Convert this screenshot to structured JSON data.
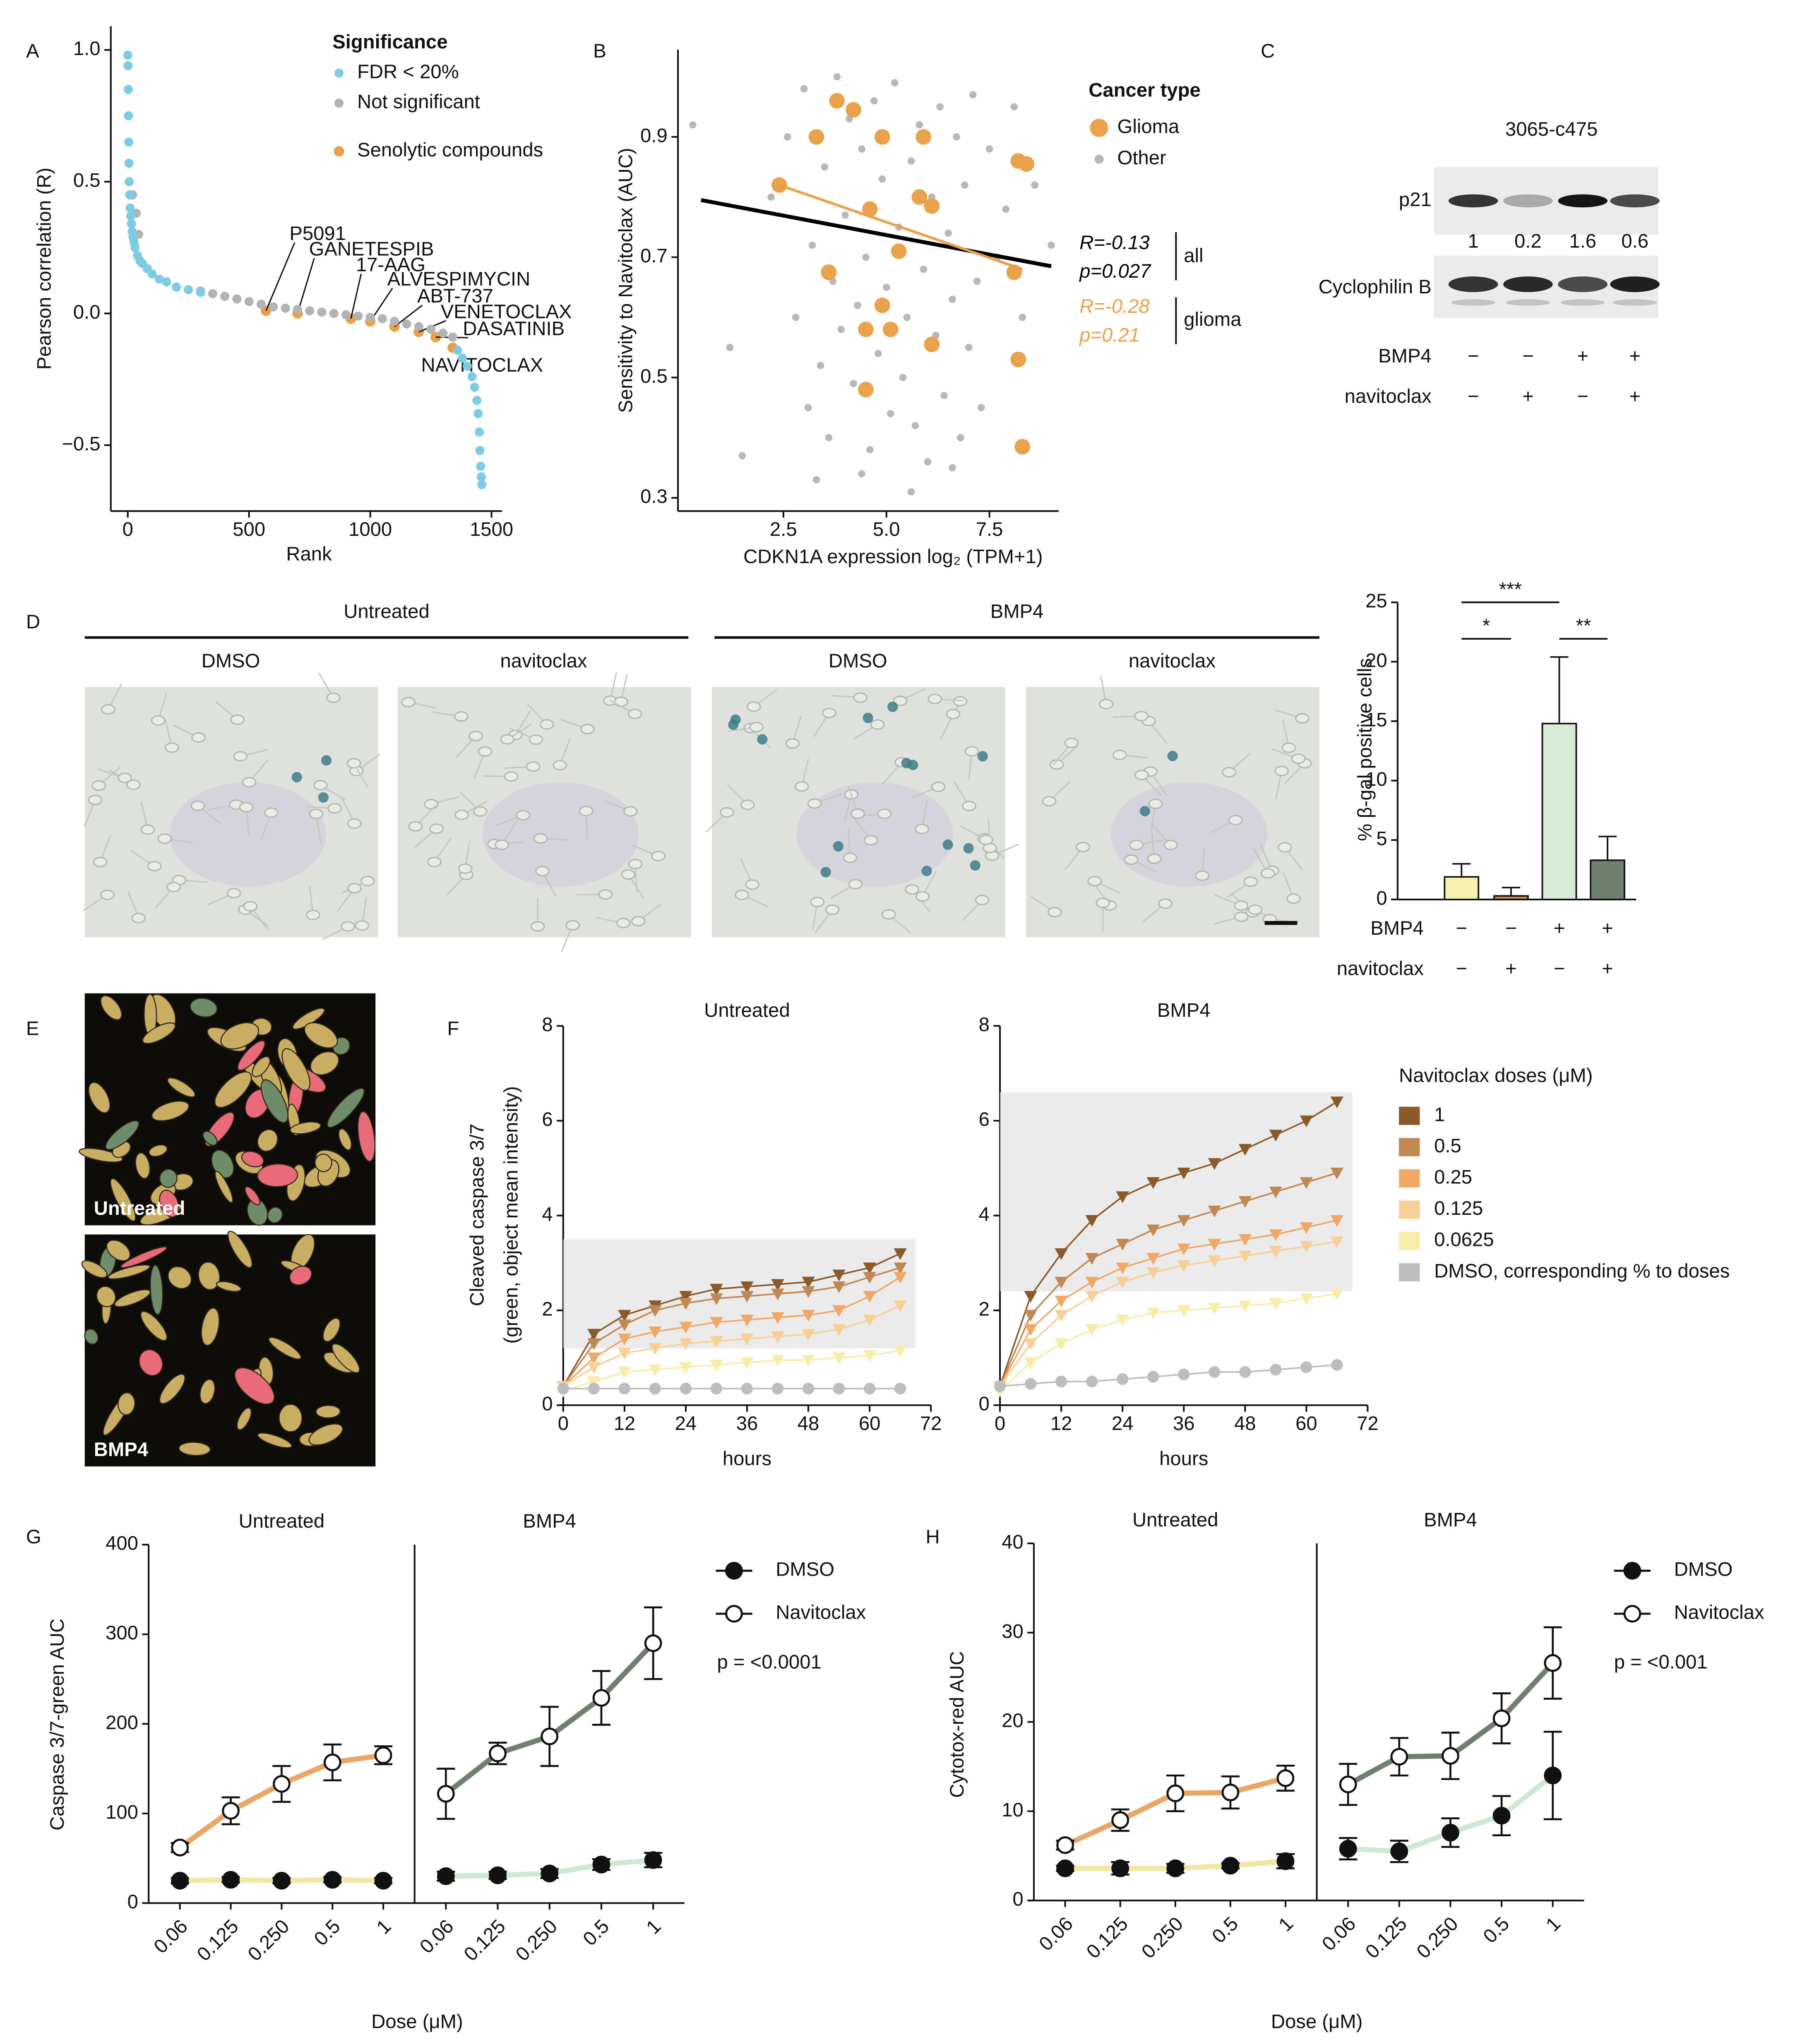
{
  "panel_labels": [
    "A",
    "B",
    "C",
    "D",
    "E",
    "F",
    "G",
    "H"
  ],
  "blot": {
    "title": "3065-c475",
    "bands": [
      {
        "label": "p21",
        "quantification": [
          1,
          0.2,
          1.6,
          0.6
        ]
      },
      {
        "label": "Cyclophilin B"
      }
    ],
    "rows": [
      {
        "label": "BMP4",
        "signs": [
          "−",
          "−",
          "+",
          "+"
        ]
      },
      {
        "label": "navitoclax",
        "signs": [
          "−",
          "+",
          "−",
          "+"
        ]
      }
    ]
  },
  "micrographs": {
    "groups": [
      {
        "label": "Untreated",
        "images": [
          "DMSO",
          "navitoclax"
        ]
      },
      {
        "label": "BMP4",
        "images": [
          "DMSO",
          "navitoclax"
        ]
      }
    ]
  },
  "segmentation": {
    "images": [
      "Untreated",
      "BMP4"
    ]
  },
  "chart_data": [
    {
      "type": "scatter",
      "ylabel": "Pearson correlation (R)",
      "xlabel": "Rank",
      "legend_title": "Significance",
      "xlim": [
        -70,
        1543
      ],
      "xticks": [
        0,
        500,
        1000,
        1500
      ],
      "ylim": [
        -0.75,
        1.09
      ],
      "yticks": [
        {
          "value": -0.5,
          "label": "−0.5"
        },
        {
          "value": 0,
          "label": "0.0"
        },
        0.5,
        {
          "value": 1,
          "label": "1.0"
        }
      ],
      "series": [
        {
          "name": "FDR < 20%",
          "color": "#7ecbe4",
          "x": [
            0,
            1,
            2,
            3,
            4,
            5,
            6,
            8,
            10,
            12,
            15,
            18,
            22,
            26,
            30,
            40,
            50,
            60,
            80,
            100,
            130,
            160,
            200,
            250,
            300,
            1360,
            1380,
            1400,
            1420,
            1430,
            1440,
            1445,
            1450,
            1452,
            1455,
            1458,
            1460
          ],
          "values": [
            0.98,
            0.94,
            0.85,
            0.75,
            0.65,
            0.57,
            0.5,
            0.45,
            0.4,
            0.37,
            0.34,
            0.31,
            0.29,
            0.27,
            0.25,
            0.22,
            0.2,
            0.19,
            0.17,
            0.15,
            0.13,
            0.12,
            0.1,
            0.09,
            0.08,
            -0.14,
            -0.17,
            -0.2,
            -0.24,
            -0.28,
            -0.33,
            -0.38,
            -0.45,
            -0.52,
            -0.58,
            -0.62,
            -0.65
          ]
        },
        {
          "name": "Not significant",
          "color": "#b3b3b3",
          "x": [
            20,
            35,
            45,
            300,
            350,
            400,
            450,
            500,
            550,
            600,
            650,
            700,
            750,
            800,
            850,
            900,
            950,
            1000,
            1050,
            1100,
            1150,
            1200,
            1250,
            1300,
            1340
          ],
          "values": [
            0.45,
            0.38,
            0.3,
            0.085,
            0.075,
            0.065,
            0.055,
            0.045,
            0.035,
            0.025,
            0.02,
            0.015,
            0.01,
            0.005,
            0,
            -0.005,
            -0.01,
            -0.015,
            -0.02,
            -0.03,
            -0.04,
            -0.05,
            -0.06,
            -0.075,
            -0.09
          ]
        },
        {
          "name": "Senolytic compounds",
          "color": "#e9a04a",
          "x": [
            570,
            700,
            920,
            1000,
            1100,
            1200,
            1270,
            1340
          ],
          "values": [
            0.01,
            0.0,
            -0.02,
            -0.03,
            -0.05,
            -0.07,
            -0.09,
            -0.13
          ],
          "labels": [
            "P5091",
            "GANETESPIB",
            "17-AAG",
            "ALVESPIMYCIN",
            "ABT-737",
            "VENETOCLAX",
            "DASATINIB",
            "NAVITOCLAX"
          ]
        }
      ]
    },
    {
      "type": "scatter",
      "ylabel": "Sensitivity to Navitoclax (AUC)",
      "xlabel": "CDKN1A expression log₂ (TPM+1)",
      "legend_title": "Cancer type",
      "xlim": [
        -0.06,
        9.18
      ],
      "xticks": [
        2.5,
        {
          "value": 5,
          "label": "5.0"
        },
        7.5
      ],
      "ylim": [
        0.278,
        1.045
      ],
      "yticks": [
        0.3,
        0.5,
        0.7,
        0.9
      ],
      "series": [
        {
          "name": "Glioma",
          "color": "#eba24c",
          "x": [
            2.4,
            3.3,
            3.8,
            4.2,
            4.6,
            4.9,
            5.9,
            5.8,
            6.1,
            5.3,
            4.5,
            4.9,
            3.6,
            5.1,
            6.1,
            4.5,
            8.2,
            8.4,
            8.1,
            8.2,
            8.3
          ],
          "values": [
            0.82,
            0.9,
            0.96,
            0.945,
            0.78,
            0.9,
            0.9,
            0.8,
            0.785,
            0.71,
            0.58,
            0.62,
            0.675,
            0.58,
            0.555,
            0.48,
            0.86,
            0.855,
            0.675,
            0.53,
            0.385
          ]
        },
        {
          "name": "Other",
          "color": "#b8b8b8",
          "x": [
            0.3,
            1.2,
            1.5,
            2.2,
            2.6,
            2.8,
            3.0,
            3.1,
            3.2,
            3.4,
            3.5,
            3.6,
            3.7,
            3.8,
            3.9,
            4.0,
            4.1,
            4.2,
            4.3,
            4.4,
            4.5,
            4.6,
            4.7,
            4.8,
            4.9,
            5.0,
            5.1,
            5.2,
            5.3,
            5.4,
            5.5,
            5.6,
            5.7,
            5.8,
            5.9,
            6.0,
            6.1,
            6.2,
            6.3,
            6.4,
            6.5,
            6.6,
            6.7,
            6.8,
            6.9,
            7.0,
            7.1,
            7.2,
            7.3,
            7.5,
            7.7,
            7.9,
            8.1,
            8.3,
            8.6,
            9.0,
            3.3,
            4.4,
            5.6,
            6.6
          ],
          "values": [
            0.92,
            0.55,
            0.37,
            0.8,
            0.9,
            0.6,
            0.98,
            0.45,
            0.72,
            0.52,
            0.85,
            0.4,
            0.66,
            1.0,
            0.58,
            0.77,
            0.93,
            0.49,
            0.62,
            0.88,
            0.7,
            0.38,
            0.96,
            0.54,
            0.83,
            0.65,
            0.44,
            0.99,
            0.75,
            0.5,
            0.6,
            0.86,
            0.42,
            0.92,
            0.68,
            0.36,
            0.8,
            0.57,
            0.95,
            0.47,
            0.74,
            0.63,
            0.9,
            0.4,
            0.82,
            0.55,
            0.97,
            0.66,
            0.45,
            0.88,
            0.7,
            0.78,
            0.95,
            0.6,
            0.82,
            0.72,
            0.33,
            0.34,
            0.31,
            0.35
          ]
        }
      ],
      "fit_lines": [
        {
          "name": "all",
          "color": "#000000",
          "x": [
            0.5,
            9.0
          ],
          "values": [
            0.795,
            0.685
          ],
          "stats": [
            "R=-0.13",
            "p=0.027"
          ]
        },
        {
          "name": "glioma",
          "color": "#e9a04a",
          "x": [
            2.4,
            8.3
          ],
          "values": [
            0.82,
            0.68
          ],
          "stats": [
            "R=-0.28",
            "p=0.21"
          ]
        }
      ]
    },
    {
      "type": "bar",
      "ylabel": "% β-gal positive cells",
      "values": [
        1.9,
        0.3,
        14.8,
        3.3
      ],
      "errors": [
        1.1,
        0.7,
        5.6,
        2.0
      ],
      "colors": [
        "#f6efb0",
        "#c98b52",
        "#d6ecd6",
        "#6f7f70"
      ],
      "ylim": [
        0,
        25
      ],
      "yticks": [
        0,
        5,
        10,
        15,
        20,
        25
      ],
      "significance": [
        "***",
        "*",
        "**"
      ],
      "rows": [
        {
          "label": "BMP4",
          "signs": [
            "−",
            "−",
            "+",
            "+"
          ]
        },
        {
          "label": "navitoclax",
          "signs": [
            "−",
            "+",
            "−",
            "+"
          ]
        }
      ]
    },
    {
      "type": "line",
      "ylabel": [
        "Cleaved caspase 3/7",
        "(green, object mean intensity)"
      ],
      "xlabel": "hours",
      "x": [
        0,
        6,
        12,
        18,
        24,
        30,
        36,
        42,
        48,
        54,
        60,
        66
      ],
      "xlim": [
        0,
        72
      ],
      "xticks": [
        0,
        12,
        24,
        36,
        48,
        60,
        72
      ],
      "ylim": [
        0,
        8
      ],
      "yticks": [
        0,
        2,
        4,
        6,
        8
      ],
      "legend_title": "Navitoclax doses (μM)",
      "legend": [
        {
          "name": "1",
          "color": "#8b5a2b",
          "marker": "triangle"
        },
        {
          "name": "0.5",
          "color": "#c08852",
          "marker": "triangle"
        },
        {
          "name": "0.25",
          "color": "#f0a868",
          "marker": "triangle"
        },
        {
          "name": "0.125",
          "color": "#f8cf96",
          "marker": "triangle"
        },
        {
          "name": "0.0625",
          "color": "#f7ecaa",
          "marker": "triangle"
        },
        {
          "name": "DMSO, corresponding % to doses",
          "color": "#bdbdbd",
          "marker": "circle"
        }
      ],
      "panels": [
        {
          "title": "Untreated",
          "shaded_region": {
            "x": [
              0,
              69
            ],
            "y": [
              1.2,
              3.5
            ]
          },
          "series": [
            {
              "values": [
                0.4,
                1.5,
                1.9,
                2.1,
                2.3,
                2.45,
                2.5,
                2.55,
                2.6,
                2.75,
                2.9,
                3.2
              ]
            },
            {
              "values": [
                0.4,
                1.3,
                1.7,
                2.0,
                2.15,
                2.25,
                2.3,
                2.35,
                2.4,
                2.5,
                2.7,
                2.9
              ]
            },
            {
              "values": [
                0.4,
                1.0,
                1.4,
                1.55,
                1.65,
                1.75,
                1.8,
                1.85,
                1.9,
                2.0,
                2.3,
                2.7
              ]
            },
            {
              "values": [
                0.4,
                0.8,
                1.1,
                1.2,
                1.3,
                1.35,
                1.4,
                1.45,
                1.5,
                1.6,
                1.8,
                2.1
              ]
            },
            {
              "values": [
                0.3,
                0.5,
                0.7,
                0.75,
                0.8,
                0.85,
                0.9,
                0.95,
                0.95,
                1.0,
                1.05,
                1.15
              ]
            },
            {
              "values": [
                0.35,
                0.35,
                0.35,
                0.35,
                0.35,
                0.35,
                0.35,
                0.35,
                0.35,
                0.35,
                0.35,
                0.35
              ]
            }
          ]
        },
        {
          "title": "BMP4",
          "shaded_region": {
            "x": [
              0,
              69
            ],
            "y": [
              2.4,
              6.6
            ]
          },
          "series": [
            {
              "values": [
                0.4,
                2.3,
                3.2,
                3.9,
                4.4,
                4.7,
                4.9,
                5.1,
                5.4,
                5.7,
                6.0,
                6.4
              ]
            },
            {
              "values": [
                0.4,
                1.9,
                2.6,
                3.1,
                3.4,
                3.7,
                3.9,
                4.1,
                4.3,
                4.5,
                4.7,
                4.9
              ]
            },
            {
              "values": [
                0.4,
                1.6,
                2.2,
                2.6,
                2.9,
                3.1,
                3.3,
                3.4,
                3.5,
                3.6,
                3.75,
                3.9
              ]
            },
            {
              "values": [
                0.4,
                1.3,
                1.9,
                2.3,
                2.6,
                2.8,
                2.95,
                3.05,
                3.15,
                3.25,
                3.35,
                3.45
              ]
            },
            {
              "values": [
                0.3,
                0.9,
                1.3,
                1.6,
                1.8,
                1.95,
                2.0,
                2.05,
                2.1,
                2.15,
                2.25,
                2.35
              ]
            },
            {
              "values": [
                0.4,
                0.45,
                0.5,
                0.5,
                0.55,
                0.6,
                0.65,
                0.7,
                0.7,
                0.75,
                0.8,
                0.85
              ]
            }
          ]
        }
      ]
    },
    {
      "type": "line",
      "ylabel": "Caspase 3/7-green AUC",
      "xlabel": "Dose (μM)",
      "categories": [
        "0.06",
        "0.125",
        "0.250",
        "0.5",
        "1"
      ],
      "ylim": [
        0,
        400
      ],
      "yticks": [
        0,
        100,
        200,
        300,
        400
      ],
      "legend": [
        {
          "name": "DMSO",
          "marker": "filled"
        },
        {
          "name": "Navitoclax",
          "marker": "open"
        }
      ],
      "annotation": "p = <0.0001",
      "panels": [
        {
          "title": "Untreated",
          "series": [
            {
              "color": "#f2e6a6",
              "values": [
                25,
                26,
                25,
                26,
                25
              ],
              "errors": [
                3,
                3,
                3,
                3,
                3
              ]
            },
            {
              "color": "#e8a766",
              "values": [
                62,
                103,
                133,
                157,
                165
              ],
              "errors": [
                5,
                15,
                20,
                20,
                10
              ]
            }
          ]
        },
        {
          "title": "BMP4",
          "series": [
            {
              "color": "#cfe8d6",
              "values": [
                30,
                31,
                33,
                43,
                48
              ],
              "errors": [
                5,
                4,
                5,
                6,
                8
              ]
            },
            {
              "color": "#6f7f70",
              "values": [
                122,
                167,
                186,
                229,
                290
              ],
              "errors": [
                28,
                12,
                33,
                30,
                40
              ]
            }
          ]
        }
      ]
    },
    {
      "type": "line",
      "ylabel": "Cytotox-red AUC",
      "xlabel": "Dose (μM)",
      "categories": [
        "0.06",
        "0.125",
        "0.250",
        "0.5",
        "1"
      ],
      "ylim": [
        0,
        40
      ],
      "yticks": [
        0,
        10,
        20,
        30,
        40
      ],
      "legend": [
        {
          "name": "DMSO",
          "marker": "filled"
        },
        {
          "name": "Navitoclax",
          "marker": "open"
        }
      ],
      "annotation": "p = <0.001",
      "panels": [
        {
          "title": "Untreated",
          "series": [
            {
              "color": "#f2e6a6",
              "values": [
                3.6,
                3.6,
                3.6,
                3.9,
                4.4
              ],
              "errors": [
                0.3,
                0.7,
                0.5,
                0.3,
                0.8
              ]
            },
            {
              "color": "#e8a766",
              "values": [
                6.2,
                9,
                12,
                12.1,
                13.7
              ],
              "errors": [
                0.5,
                1.2,
                2,
                1.8,
                1.4
              ]
            }
          ]
        },
        {
          "title": "BMP4",
          "series": [
            {
              "color": "#cfe8d6",
              "values": [
                5.8,
                5.5,
                7.6,
                9.5,
                14
              ],
              "errors": [
                1.2,
                1.2,
                1.6,
                2.2,
                4.9
              ]
            },
            {
              "color": "#6f7f70",
              "values": [
                13,
                16.1,
                16.2,
                20.4,
                26.6
              ],
              "errors": [
                2.3,
                2.1,
                2.6,
                2.8,
                4
              ]
            }
          ]
        }
      ]
    }
  ]
}
